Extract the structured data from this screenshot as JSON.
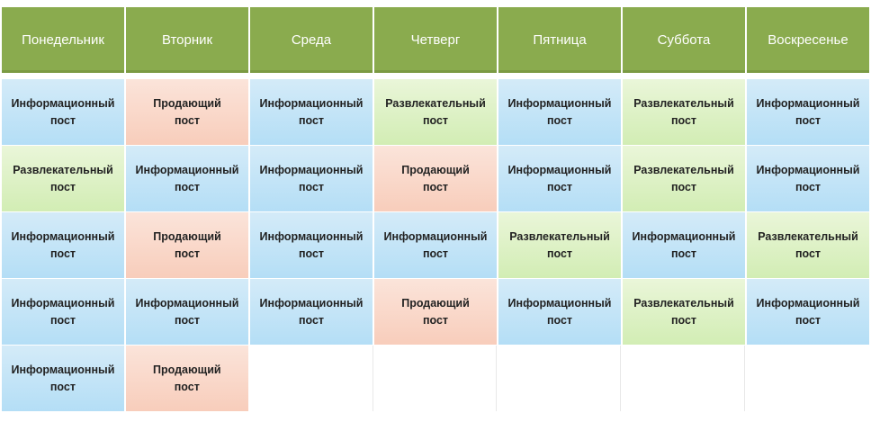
{
  "days": [
    "Понедельник",
    "Вторник",
    "Среда",
    "Четверг",
    "Пятница",
    "Суббота",
    "Воскресенье"
  ],
  "post_types": {
    "info": "Информационный\nпост",
    "fun": "Развлекательный\nпост",
    "sell": "Продающий\nпост"
  },
  "rows": [
    [
      "info",
      "sell",
      "info",
      "fun",
      "info",
      "fun",
      "info"
    ],
    [
      "fun",
      "info",
      "info",
      "sell",
      "info",
      "fun",
      "info"
    ],
    [
      "info",
      "sell",
      "info",
      "info",
      "fun",
      "info",
      "fun"
    ],
    [
      "info",
      "info",
      "info",
      "sell",
      "info",
      "fun",
      "info"
    ],
    [
      "info",
      "sell",
      "",
      "",
      "",
      "",
      ""
    ]
  ],
  "colors": {
    "header": "#8aab4e",
    "info": "#c4e4f7",
    "fun": "#ddf1c6",
    "sell": "#f9d8ca"
  }
}
